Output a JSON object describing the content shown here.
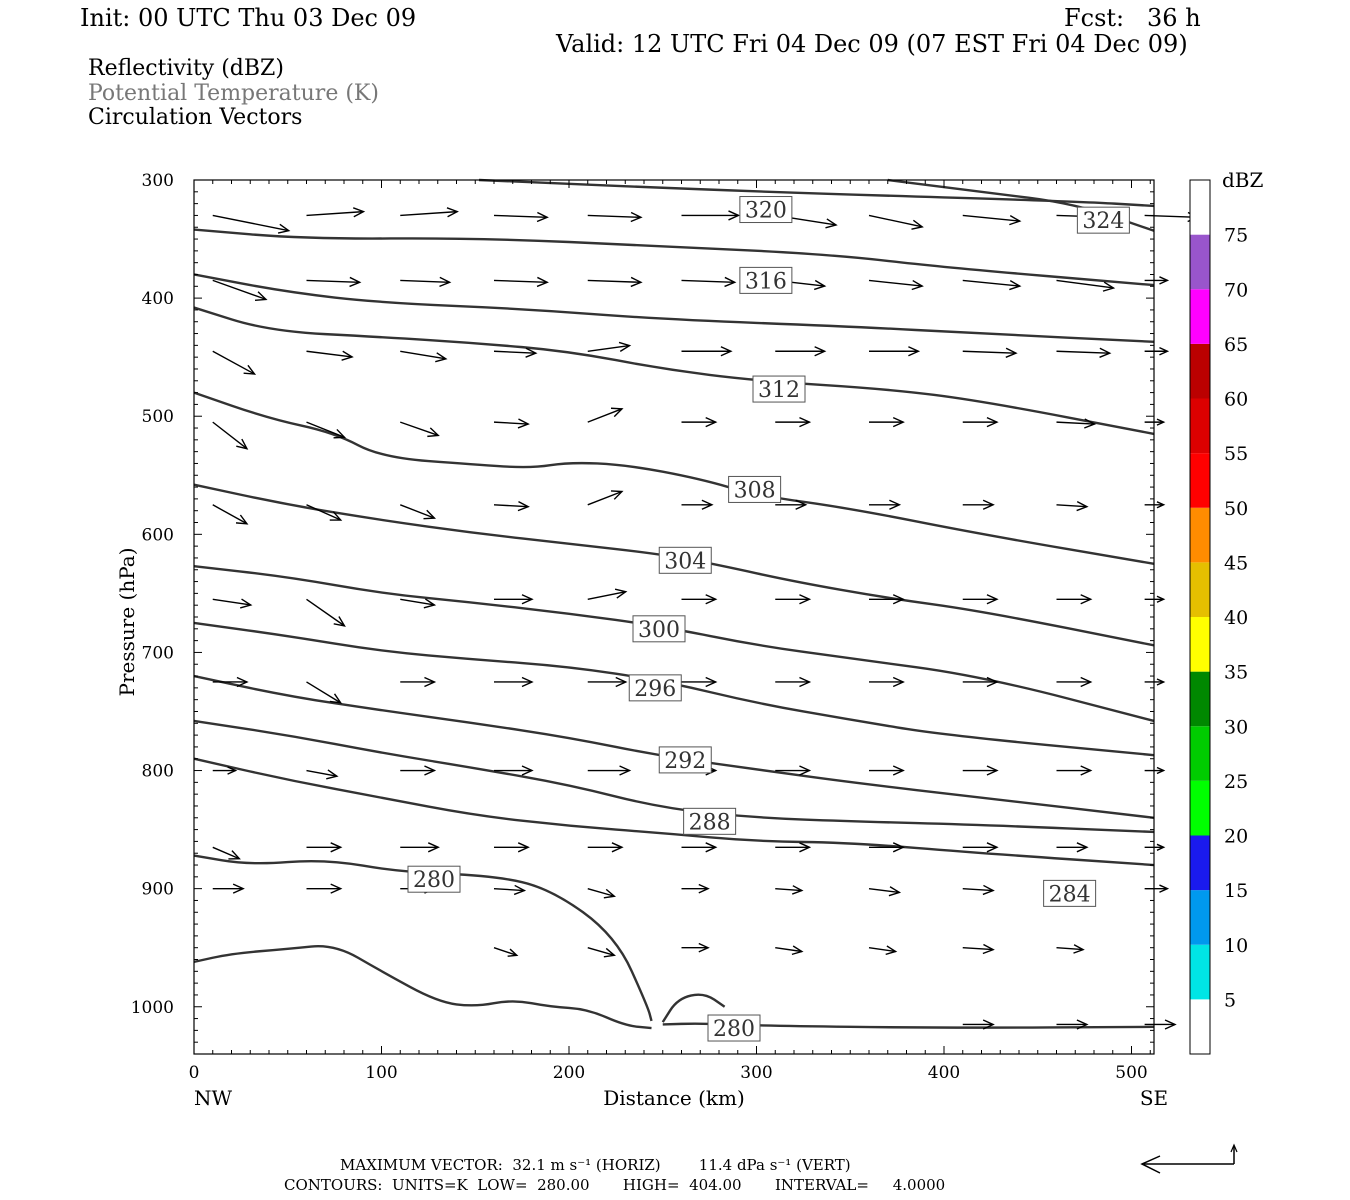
{
  "header": {
    "init": "Init: 00 UTC Thu 03 Dec 09",
    "fcst": "Fcst:   36 h",
    "valid": "Valid: 12 UTC Fri 04 Dec 09 (07 EST Fri 04 Dec 09)",
    "fields": [
      "Reflectivity (dBZ)",
      "Potential Temperature (K)",
      "Circulation Vectors"
    ]
  },
  "footer": {
    "line1": "MAXIMUM VECTOR:  32.1 m s⁻¹ (HORIZ)        11.4 dPa s⁻¹ (VERT)",
    "line2": "CONTOURS:  UNITS=K  LOW=  280.00       HIGH=  404.00       INTERVAL=     4.0000"
  },
  "chart_data": {
    "type": "cross-section",
    "xlabel": "Distance (km)",
    "ylabel": "Pressure (hPa)",
    "xlim": [
      0,
      512
    ],
    "ylim": [
      1040,
      300
    ],
    "xticks": [
      0,
      100,
      200,
      300,
      400,
      500
    ],
    "yticks": [
      300,
      400,
      500,
      600,
      700,
      800,
      900,
      1000
    ],
    "x_end_labels": {
      "left": "NW",
      "right": "SE"
    },
    "colorbar": {
      "title": "dBZ",
      "ticks": [
        5,
        10,
        15,
        20,
        25,
        30,
        35,
        40,
        45,
        50,
        55,
        60,
        65,
        70,
        75
      ],
      "colors": [
        "#00e5e5",
        "#0099ee",
        "#1a1aee",
        "#00ff00",
        "#00cc00",
        "#008800",
        "#ffff00",
        "#e5bf00",
        "#ff8c00",
        "#ff0000",
        "#dd0000",
        "#bb0000",
        "#ff00ff",
        "#9955cc"
      ]
    },
    "contours": [
      {
        "label": "",
        "points": [
          [
            152,
            300
          ],
          [
            300,
            310
          ],
          [
            470,
            318
          ],
          [
            512,
            322
          ]
        ]
      },
      {
        "label": "320",
        "label_pos": [
          305,
          325
        ],
        "points": [
          [
            0,
            342
          ],
          [
            60,
            350
          ],
          [
            150,
            349
          ],
          [
            250,
            356
          ],
          [
            340,
            363
          ],
          [
            400,
            374
          ],
          [
            512,
            389
          ]
        ]
      },
      {
        "label": "324",
        "label_pos": [
          485,
          334
        ],
        "points": [
          [
            370,
            300
          ],
          [
            420,
            310
          ],
          [
            470,
            320
          ],
          [
            512,
            343
          ]
        ]
      },
      {
        "label": "316",
        "label_pos": [
          305,
          385
        ],
        "points": [
          [
            0,
            380
          ],
          [
            50,
            395
          ],
          [
            100,
            404
          ],
          [
            175,
            409
          ],
          [
            250,
            418
          ],
          [
            350,
            424
          ],
          [
            420,
            430
          ],
          [
            512,
            437
          ]
        ]
      },
      {
        "label": "312",
        "label_pos": [
          312,
          477
        ],
        "points": [
          [
            0,
            408
          ],
          [
            40,
            428
          ],
          [
            100,
            433
          ],
          [
            150,
            438
          ],
          [
            200,
            445
          ],
          [
            250,
            460
          ],
          [
            300,
            470
          ],
          [
            370,
            477
          ],
          [
            420,
            487
          ],
          [
            512,
            515
          ]
        ]
      },
      {
        "label": "308",
        "label_pos": [
          299,
          562
        ],
        "points": [
          [
            0,
            480
          ],
          [
            40,
            502
          ],
          [
            75,
            514
          ],
          [
            100,
            535
          ],
          [
            150,
            541
          ],
          [
            180,
            544
          ],
          [
            200,
            539
          ],
          [
            230,
            541
          ],
          [
            270,
            553
          ],
          [
            300,
            567
          ],
          [
            350,
            578
          ],
          [
            420,
            600
          ],
          [
            512,
            625
          ]
        ]
      },
      {
        "label": "304",
        "label_pos": [
          262,
          622
        ],
        "points": [
          [
            0,
            558
          ],
          [
            50,
            575
          ],
          [
            100,
            588
          ],
          [
            150,
            599
          ],
          [
            200,
            608
          ],
          [
            250,
            617
          ],
          [
            280,
            626
          ],
          [
            320,
            640
          ],
          [
            370,
            654
          ],
          [
            420,
            665
          ],
          [
            512,
            694
          ]
        ]
      },
      {
        "label": "300",
        "label_pos": [
          248,
          680
        ],
        "points": [
          [
            0,
            627
          ],
          [
            50,
            636
          ],
          [
            100,
            650
          ],
          [
            150,
            658
          ],
          [
            200,
            667
          ],
          [
            250,
            678
          ],
          [
            300,
            694
          ],
          [
            350,
            705
          ],
          [
            420,
            720
          ],
          [
            512,
            758
          ]
        ]
      },
      {
        "label": "296",
        "label_pos": [
          246,
          730
        ],
        "points": [
          [
            0,
            675
          ],
          [
            50,
            686
          ],
          [
            100,
            699
          ],
          [
            150,
            706
          ],
          [
            200,
            712
          ],
          [
            250,
            724
          ],
          [
            300,
            743
          ],
          [
            350,
            757
          ],
          [
            400,
            770
          ],
          [
            512,
            787
          ]
        ]
      },
      {
        "label": "292",
        "label_pos": [
          262,
          791
        ],
        "points": [
          [
            0,
            720
          ],
          [
            50,
            737
          ],
          [
            100,
            749
          ],
          [
            150,
            760
          ],
          [
            200,
            772
          ],
          [
            250,
            788
          ],
          [
            300,
            799
          ],
          [
            350,
            810
          ],
          [
            420,
            823
          ],
          [
            512,
            840
          ]
        ]
      },
      {
        "label": "288",
        "label_pos": [
          275,
          843
        ],
        "points": [
          [
            0,
            758
          ],
          [
            50,
            770
          ],
          [
            100,
            785
          ],
          [
            150,
            798
          ],
          [
            200,
            812
          ],
          [
            250,
            832
          ],
          [
            300,
            840
          ],
          [
            350,
            843
          ],
          [
            420,
            846
          ],
          [
            512,
            852
          ]
        ]
      },
      {
        "label": "284",
        "label_pos": [
          467,
          904
        ],
        "points": [
          [
            0,
            790
          ],
          [
            50,
            808
          ],
          [
            100,
            823
          ],
          [
            150,
            838
          ],
          [
            200,
            847
          ],
          [
            250,
            853
          ],
          [
            300,
            860
          ],
          [
            350,
            861
          ],
          [
            420,
            870
          ],
          [
            512,
            880
          ]
        ]
      },
      {
        "label": "280",
        "label_pos": [
          128,
          892
        ],
        "points": [
          [
            0,
            872
          ],
          [
            30,
            880
          ],
          [
            70,
            875
          ],
          [
            110,
            886
          ],
          [
            160,
            889
          ],
          [
            190,
            900
          ],
          [
            225,
            940
          ],
          [
            242,
            1000
          ],
          [
            244,
            1012
          ]
        ]
      },
      {
        "label": "",
        "points": [
          [
            0,
            962
          ],
          [
            20,
            955
          ],
          [
            50,
            951
          ],
          [
            75,
            947
          ],
          [
            100,
            970
          ],
          [
            130,
            996
          ],
          [
            150,
            1000
          ],
          [
            170,
            994
          ],
          [
            190,
            1000
          ],
          [
            210,
            1002
          ],
          [
            230,
            1016
          ],
          [
            244,
            1018
          ]
        ]
      },
      {
        "label": "280",
        "label_pos": [
          288,
          1018
        ],
        "points": [
          [
            250,
            1015
          ],
          [
            270,
            1014
          ],
          [
            300,
            1016
          ],
          [
            400,
            1018
          ],
          [
            512,
            1017
          ]
        ]
      },
      {
        "label": "",
        "points": [
          [
            250,
            1013
          ],
          [
            258,
            993
          ],
          [
            272,
            988
          ],
          [
            283,
            1000
          ]
        ]
      }
    ],
    "vectors": {
      "columns": [
        10,
        60,
        110,
        160,
        210,
        260,
        310,
        360,
        410,
        460,
        507
      ],
      "rows": [
        {
          "p": 330,
          "u": [
            40,
            30,
            30,
            28,
            28,
            30,
            32,
            28,
            30,
            30,
            28
          ],
          "w": [
            8,
            -2,
            -2,
            1,
            1,
            0,
            5,
            6,
            3,
            1,
            1
          ]
        },
        {
          "p": 385,
          "u": [
            28,
            28,
            26,
            28,
            28,
            28,
            26,
            28,
            30,
            30,
            12
          ],
          "w": [
            10,
            1,
            1,
            1,
            1,
            1,
            3,
            3,
            3,
            4,
            0
          ]
        },
        {
          "p": 445,
          "u": [
            22,
            24,
            24,
            22,
            22,
            26,
            26,
            26,
            28,
            28,
            12
          ],
          "w": [
            12,
            3,
            4,
            1,
            -3,
            0,
            0,
            0,
            1,
            1,
            0
          ]
        },
        {
          "p": 505,
          "u": [
            18,
            20,
            20,
            18,
            18,
            18,
            18,
            18,
            18,
            20,
            10
          ],
          "w": [
            14,
            8,
            7,
            1,
            -7,
            0,
            0,
            0,
            0,
            1,
            0
          ]
        },
        {
          "p": 575,
          "u": [
            18,
            18,
            18,
            18,
            18,
            16,
            16,
            16,
            16,
            16,
            10
          ],
          "w": [
            10,
            8,
            7,
            1,
            -7,
            0,
            0,
            0,
            0,
            1,
            0
          ]
        },
        {
          "p": 655,
          "u": [
            20,
            20,
            18,
            20,
            20,
            18,
            18,
            18,
            18,
            18,
            10
          ],
          "w": [
            3,
            14,
            3,
            0,
            -4,
            0,
            0,
            0,
            0,
            0,
            0
          ]
        },
        {
          "p": 725,
          "u": [
            18,
            18,
            18,
            20,
            20,
            18,
            18,
            18,
            18,
            18,
            10
          ],
          "w": [
            0,
            11,
            0,
            0,
            0,
            0,
            0,
            0,
            0,
            0,
            0
          ]
        },
        {
          "p": 800,
          "u": [
            12,
            16,
            18,
            20,
            22,
            18,
            18,
            18,
            18,
            18,
            10
          ],
          "w": [
            0,
            3,
            0,
            0,
            0,
            0,
            0,
            0,
            0,
            0,
            0
          ]
        },
        {
          "p": 865,
          "u": [
            14,
            18,
            20,
            18,
            18,
            18,
            18,
            18,
            18,
            16,
            10
          ],
          "w": [
            6,
            0,
            0,
            0,
            0,
            0,
            0,
            0,
            0,
            0,
            0
          ]
        },
        {
          "p": 900,
          "u": [
            16,
            18,
            18,
            16,
            14,
            14,
            14,
            16,
            16,
            16,
            12
          ],
          "w": [
            0,
            0,
            0,
            1,
            4,
            0,
            1,
            2,
            1,
            1,
            0
          ]
        },
        {
          "p": 950,
          "u": [
            0,
            0,
            0,
            12,
            14,
            14,
            14,
            14,
            16,
            14,
            0
          ],
          "w": [
            0,
            0,
            0,
            4,
            4,
            0,
            2,
            2,
            1,
            1,
            0
          ]
        },
        {
          "p": 1015,
          "u": [
            0,
            0,
            0,
            0,
            0,
            0,
            0,
            0,
            16,
            16,
            16
          ],
          "w": [
            0,
            0,
            0,
            0,
            0,
            0,
            0,
            0,
            0,
            0,
            0
          ]
        }
      ]
    }
  }
}
